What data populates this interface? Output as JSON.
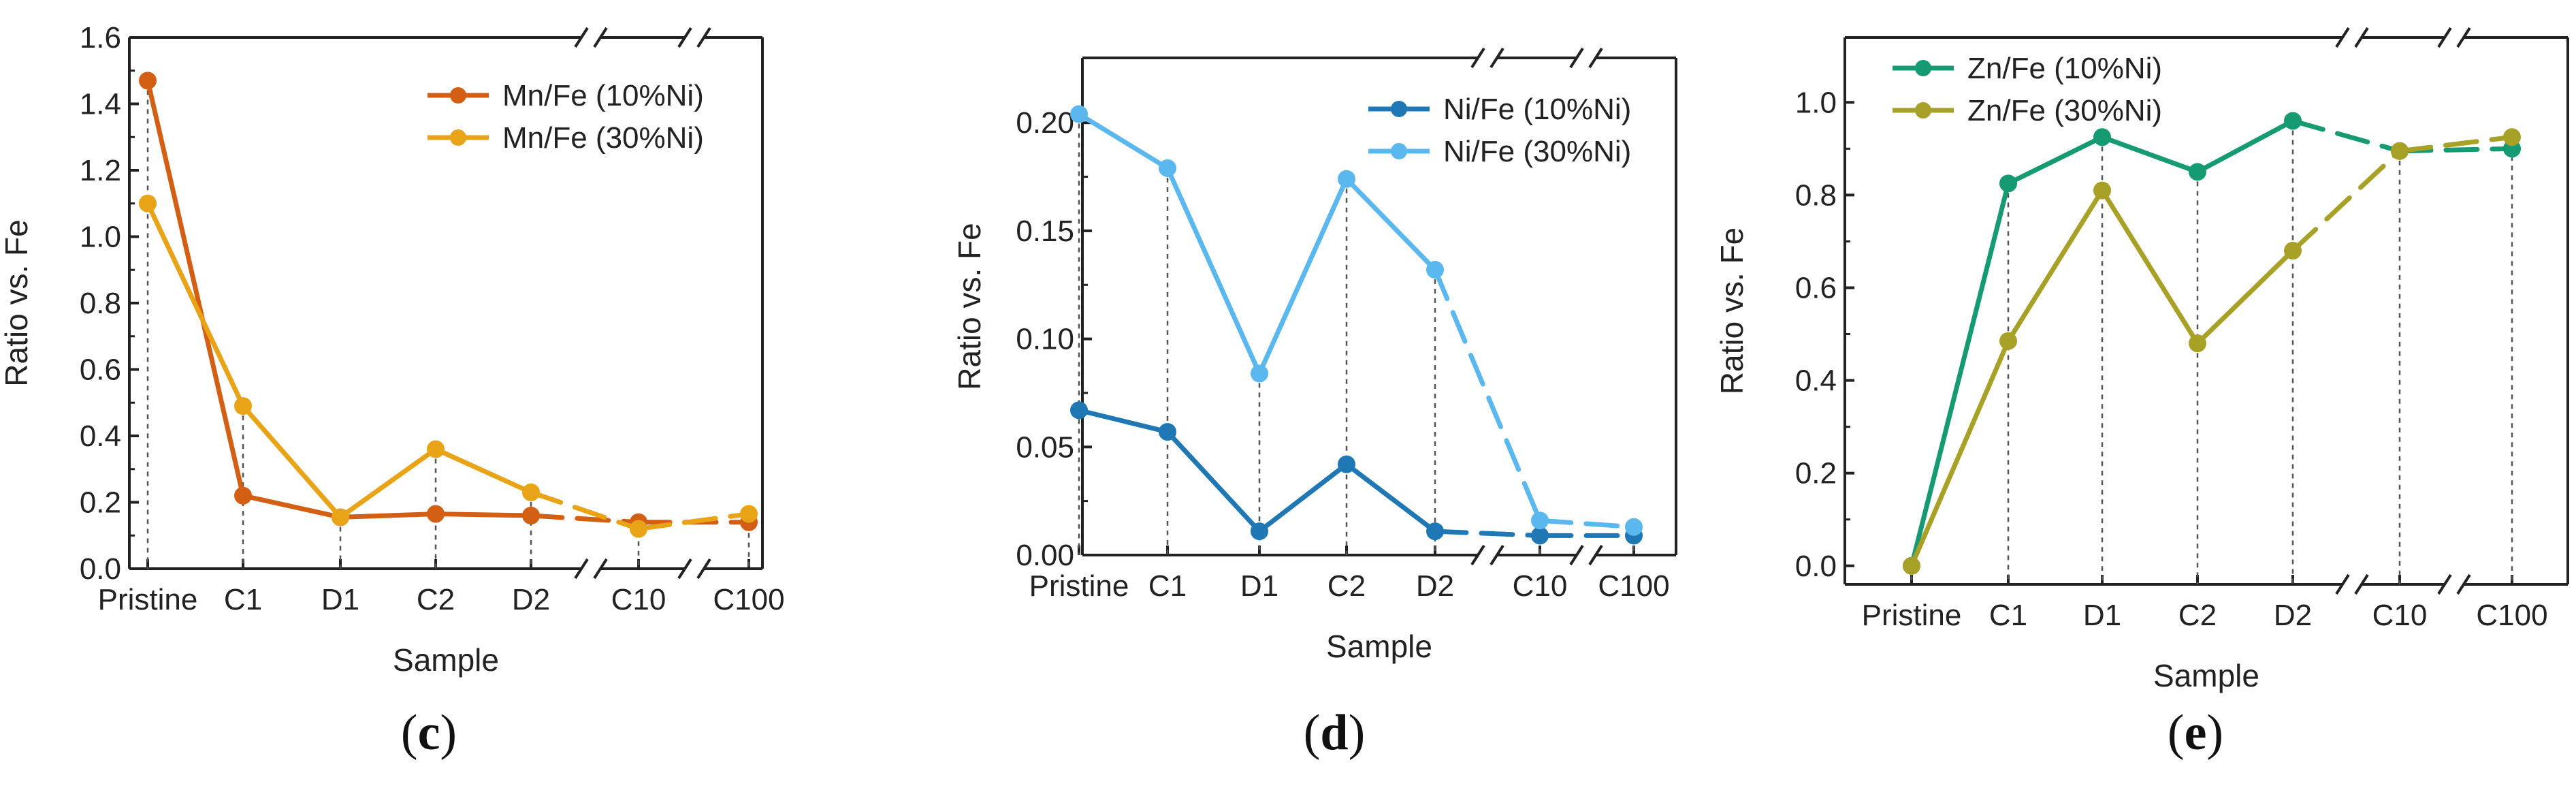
{
  "chart_data": [
    {
      "type": "line",
      "panel_label": "c",
      "xlabel": "Sample",
      "ylabel": "Ratio vs. Fe",
      "categories": [
        "Pristine",
        "C1",
        "D1",
        "C2",
        "D2",
        "C10",
        "C100"
      ],
      "ylim": [
        0,
        1.6
      ],
      "yticks": [
        0.0,
        0.2,
        0.4,
        0.6,
        0.8,
        1.0,
        1.2,
        1.4,
        1.6
      ],
      "ytick_labels": [
        "0.0",
        "0.2",
        "0.4",
        "0.6",
        "0.8",
        "1.0",
        "1.2",
        "1.4",
        "1.6"
      ],
      "axis_breaks": [
        "between D2 and C10",
        "between C10 and C100"
      ],
      "legend_position": "top-right",
      "series": [
        {
          "name": "Mn/Fe (10%Ni)",
          "color": "#d35f14",
          "values": [
            1.47,
            0.22,
            0.155,
            0.165,
            0.16,
            0.14,
            0.14
          ]
        },
        {
          "name": "Mn/Fe (30%Ni)",
          "color": "#e8a317",
          "values": [
            1.1,
            0.49,
            0.155,
            0.36,
            0.23,
            0.12,
            0.165
          ]
        }
      ]
    },
    {
      "type": "line",
      "panel_label": "d",
      "xlabel": "Sample",
      "ylabel": "Ratio vs. Fe",
      "categories": [
        "Pristine",
        "C1",
        "D1",
        "C2",
        "D2",
        "C10",
        "C100"
      ],
      "ylim": [
        0,
        0.23
      ],
      "yticks": [
        0.0,
        0.05,
        0.1,
        0.15,
        0.2
      ],
      "ytick_labels": [
        "0.00",
        "0.05",
        "0.10",
        "0.15",
        "0.20"
      ],
      "axis_breaks": [
        "between D2 and C10",
        "between C10 and C100"
      ],
      "legend_position": "top-right",
      "series": [
        {
          "name": "Ni/Fe (10%Ni)",
          "color": "#1f77b4",
          "values": [
            0.067,
            0.057,
            0.011,
            0.042,
            0.011,
            0.009,
            0.009
          ]
        },
        {
          "name": "Ni/Fe (30%Ni)",
          "color": "#5bb8ee",
          "values": [
            0.204,
            0.179,
            0.084,
            0.174,
            0.132,
            0.016,
            0.013
          ]
        }
      ]
    },
    {
      "type": "line",
      "panel_label": "e",
      "xlabel": "Sample",
      "ylabel": "Ratio vs. Fe",
      "categories": [
        "Pristine",
        "C1",
        "D1",
        "C2",
        "D2",
        "C10",
        "C100"
      ],
      "ylim": [
        -0.04,
        1.14
      ],
      "yticks": [
        0.0,
        0.2,
        0.4,
        0.6,
        0.8,
        1.0
      ],
      "ytick_labels": [
        "0.0",
        "0.2",
        "0.4",
        "0.6",
        "0.8",
        "1.0"
      ],
      "axis_breaks": [
        "between D2 and C10",
        "between C10 and C100"
      ],
      "legend_position": "top-left",
      "series": [
        {
          "name": "Zn/Fe (10%Ni)",
          "color": "#159a72",
          "values": [
            0.0,
            0.825,
            0.925,
            0.85,
            0.96,
            0.895,
            0.9
          ]
        },
        {
          "name": "Zn/Fe (30%Ni)",
          "color": "#a8a127",
          "values": [
            0.0,
            0.485,
            0.81,
            0.48,
            0.68,
            0.895,
            0.925
          ]
        }
      ]
    }
  ]
}
